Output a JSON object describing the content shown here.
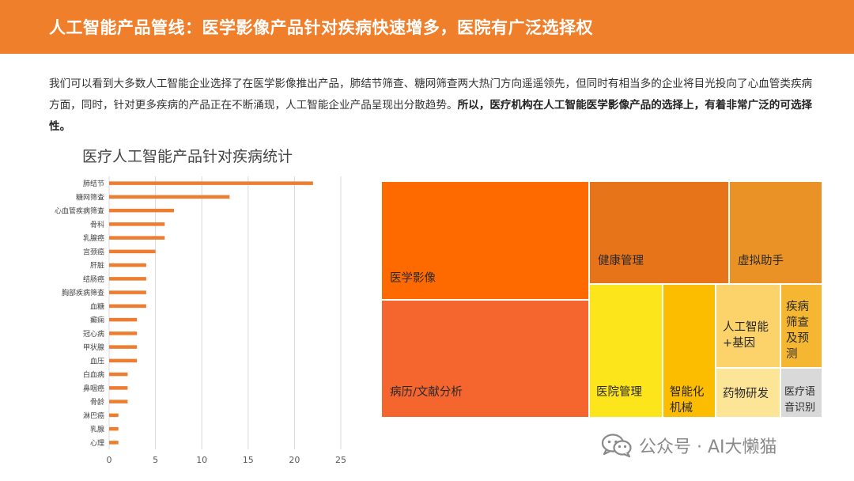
{
  "header": {
    "title": "人工智能产品管线：医学影像产品针对疾病快速增多，医院有广泛选择权"
  },
  "paragraph": {
    "normal": "我们可以看到大多数人工智能企业选择了在医学影像推出产品，肺结节筛查、糖网筛查两大热门方向遥遥领先，但同时有相当多的企业将目光投向了心血管类疾病方面，同时，针对更多疾病的产品正在不断涌现，人工智能企业产品呈现出分散趋势。",
    "bold": "所以，医疗机构在人工智能医学影像产品的选择上，有着非常广泛的可选择性。"
  },
  "chart_data": [
    {
      "type": "bar",
      "orientation": "horizontal",
      "title": "医疗人工智能产品针对疾病统计",
      "categories": [
        "肺结节",
        "糖网筛查",
        "心血管疾病筛查",
        "骨科",
        "乳腺癌",
        "宫颈癌",
        "肝脏",
        "结肠癌",
        "胸部疾病筛查",
        "血糖",
        "癫痫",
        "冠心病",
        "甲状腺",
        "血压",
        "白血病",
        "鼻咽癌",
        "骨龄",
        "淋巴癌",
        "乳腺",
        "心理"
      ],
      "values": [
        22,
        13,
        7,
        6,
        6,
        5,
        4,
        4,
        4,
        4,
        3,
        3,
        3,
        3,
        2,
        2,
        2,
        1,
        1,
        1
      ],
      "xlim": [
        0,
        25
      ],
      "xticks": [
        0,
        5,
        10,
        15,
        20,
        25
      ],
      "grid": true,
      "color": "#ed7d31"
    },
    {
      "type": "treemap",
      "items": [
        {
          "label": "医学影像",
          "color": "#ff6a00"
        },
        {
          "label": "病历/文献分析",
          "color": "#f5652e"
        },
        {
          "label": "健康管理",
          "color": "#e8741a"
        },
        {
          "label": "虚拟助手",
          "color": "#eb9226"
        },
        {
          "label": "医院管理",
          "color": "#fce51a"
        },
        {
          "label": "智能化机械",
          "color": "#fcbc00"
        },
        {
          "label": "人工智能+基因",
          "color": "#fcd36a"
        },
        {
          "label": "疾病筛查及预测",
          "color": "#f5b731"
        },
        {
          "label": "药物研发",
          "color": "#fce596"
        },
        {
          "label": "医疗语音识别",
          "color": "#d9d9d9"
        }
      ]
    }
  ],
  "watermark": {
    "text": "公众号 · AI大懒猫",
    "icon": "wechat-icon"
  }
}
